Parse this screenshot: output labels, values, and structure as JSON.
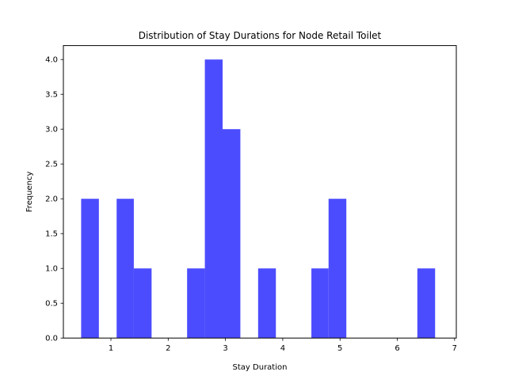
{
  "chart_data": {
    "type": "bar",
    "title": "Distribution of Stay Durations for Node Retail Toilet",
    "xlabel": "Stay Duration",
    "ylabel": "Frequency",
    "color": "#4c4cff",
    "xlim": [
      0.17,
      7.03
    ],
    "ylim": [
      0.0,
      4.2
    ],
    "xticks": [
      1,
      2,
      3,
      4,
      5,
      6,
      7
    ],
    "yticks": [
      0.0,
      0.5,
      1.0,
      1.5,
      2.0,
      2.5,
      3.0,
      3.5,
      4.0
    ],
    "ytick_labels": [
      "0.0",
      "0.5",
      "1.0",
      "1.5",
      "2.0",
      "2.5",
      "3.0",
      "3.5",
      "4.0"
    ],
    "grid": false,
    "bins": [
      {
        "x0": 0.48,
        "x1": 0.79,
        "count": 2
      },
      {
        "x0": 0.79,
        "x1": 1.1,
        "count": 0
      },
      {
        "x0": 1.1,
        "x1": 1.4,
        "count": 2
      },
      {
        "x0": 1.4,
        "x1": 1.71,
        "count": 1
      },
      {
        "x0": 1.71,
        "x1": 2.02,
        "count": 0
      },
      {
        "x0": 2.02,
        "x1": 2.33,
        "count": 0
      },
      {
        "x0": 2.33,
        "x1": 2.64,
        "count": 1
      },
      {
        "x0": 2.64,
        "x1": 2.95,
        "count": 4
      },
      {
        "x0": 2.95,
        "x1": 3.26,
        "count": 3
      },
      {
        "x0": 3.26,
        "x1": 3.57,
        "count": 0
      },
      {
        "x0": 3.57,
        "x1": 3.88,
        "count": 1
      },
      {
        "x0": 3.88,
        "x1": 4.19,
        "count": 0
      },
      {
        "x0": 4.19,
        "x1": 4.5,
        "count": 0
      },
      {
        "x0": 4.5,
        "x1": 4.8,
        "count": 1
      },
      {
        "x0": 4.8,
        "x1": 5.11,
        "count": 2
      },
      {
        "x0": 5.11,
        "x1": 5.42,
        "count": 0
      },
      {
        "x0": 5.42,
        "x1": 5.73,
        "count": 0
      },
      {
        "x0": 5.73,
        "x1": 6.04,
        "count": 0
      },
      {
        "x0": 6.04,
        "x1": 6.35,
        "count": 0
      },
      {
        "x0": 6.35,
        "x1": 6.66,
        "count": 1
      }
    ]
  }
}
